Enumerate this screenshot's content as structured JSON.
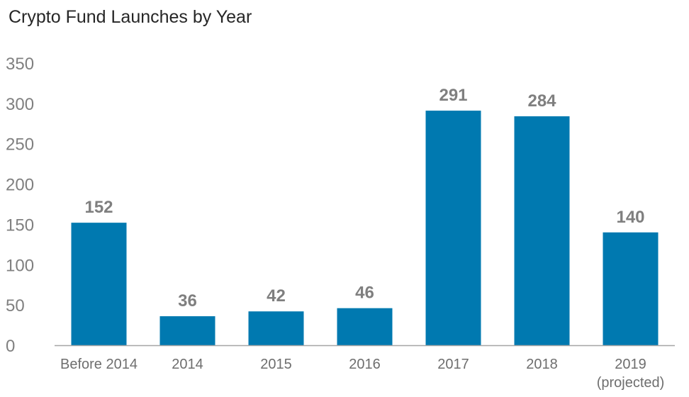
{
  "colors": {
    "bar": "#0079b0",
    "axis": "#a6a6a6",
    "tick_text": "#808080",
    "label_text": "#7f7f7f",
    "title_text": "#262626"
  },
  "chart_data": {
    "type": "bar",
    "title": "Crypto Fund Launches by Year",
    "xlabel": "",
    "ylabel": "",
    "categories": [
      "Before 2014",
      "2014",
      "2015",
      "2016",
      "2017",
      "2018",
      "2019 (projected)"
    ],
    "values": [
      152,
      36,
      42,
      46,
      291,
      284,
      140
    ],
    "ylim": [
      0,
      350
    ],
    "yticks": [
      0,
      50,
      100,
      150,
      200,
      250,
      300,
      350
    ],
    "grid": false,
    "data_labels": true,
    "legend": "none"
  }
}
